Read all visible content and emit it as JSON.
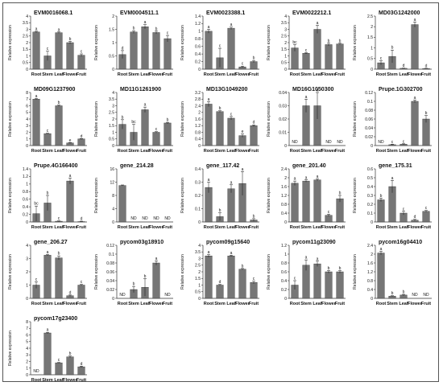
{
  "x_categories": [
    "Root",
    "Stem",
    "Leaf",
    "Flower",
    "Fruit"
  ],
  "ylabel": "Relative expression",
  "colors": {
    "bar": "#767676",
    "bar_edge": "#333333",
    "axis": "#333333",
    "text": "#111111"
  },
  "chart_data": [
    {
      "type": "bar",
      "title": "EVM0016068.1",
      "ylim": [
        0,
        4
      ],
      "yticks": [
        "0",
        "0.5",
        "1",
        "1.5",
        "2",
        "2.5",
        "3",
        "3.5",
        "4"
      ],
      "values": [
        2.8,
        1.0,
        2.75,
        2.0,
        1.05
      ],
      "errors": [
        0.05,
        0.35,
        0.05,
        0.1,
        0.1
      ],
      "letters": [
        "a",
        "c",
        "a",
        "b",
        "c"
      ]
    },
    {
      "type": "bar",
      "title": "EVM0004511.1",
      "ylim": [
        0,
        2
      ],
      "yticks": [
        "0",
        "0.5",
        "1",
        "1.5",
        "2"
      ],
      "values": [
        0.55,
        1.4,
        1.6,
        1.38,
        1.15
      ],
      "errors": [
        0.15,
        0.05,
        0.08,
        0.05,
        0.12
      ],
      "letters": [
        "d",
        "b",
        "a",
        "b",
        "c"
      ]
    },
    {
      "type": "bar",
      "title": "EVM0023388.1",
      "ylim": [
        0,
        1.4
      ],
      "yticks": [
        "0",
        "0.2",
        "0.4",
        "0.6",
        "0.8",
        "1",
        "1.2",
        "1.4"
      ],
      "values": [
        1.0,
        0.3,
        1.08,
        0.06,
        0.2
      ],
      "errors": [
        0.05,
        0.25,
        0.03,
        0.02,
        0.03
      ],
      "letters": [
        "a",
        "c",
        "a",
        "c",
        "b"
      ]
    },
    {
      "type": "bar",
      "title": "EVM0022212.1",
      "ylim": [
        0,
        4
      ],
      "yticks": [
        "0",
        "0.5",
        "1",
        "1.5",
        "2",
        "2.5",
        "3",
        "3.5",
        "4"
      ],
      "values": [
        1.6,
        1.2,
        3.0,
        1.85,
        1.9
      ],
      "errors": [
        0.25,
        0.05,
        0.3,
        0.1,
        0.05
      ],
      "letters": [
        "bc",
        "c",
        "a",
        "b",
        "b"
      ]
    },
    {
      "type": "bar",
      "title": "MD03G1242000",
      "ylim": [
        0,
        2.5
      ],
      "yticks": [
        "0",
        "0.5",
        "1",
        "1.5",
        "2",
        "2.5"
      ],
      "values": [
        0.3,
        0.6,
        0.04,
        2.1,
        0.03
      ],
      "errors": [
        0.1,
        0.3,
        0.01,
        0.12,
        0.01
      ],
      "letters": [
        "c",
        "b",
        "d",
        "a",
        "d"
      ]
    },
    {
      "type": "bar",
      "title": "MD09G1237900",
      "ylim": [
        0,
        8
      ],
      "yticks": [
        "0",
        "1",
        "2",
        "3",
        "4",
        "5",
        "6",
        "7",
        "8"
      ],
      "values": [
        7.0,
        1.8,
        6.0,
        0.4,
        1.0
      ],
      "errors": [
        0.1,
        0.05,
        0.1,
        0.05,
        0.05
      ],
      "letters": [
        "a",
        "c",
        "b",
        "e",
        "d"
      ]
    },
    {
      "type": "bar",
      "title": "MD11G1261900",
      "ylim": [
        0,
        4
      ],
      "yticks": [
        "0",
        "0.5",
        "1",
        "1.5",
        "2",
        "2.5",
        "3",
        "3.5",
        "4"
      ],
      "values": [
        1.6,
        1.0,
        2.7,
        1.0,
        1.7
      ],
      "errors": [
        0.35,
        0.6,
        0.2,
        0.05,
        0.05
      ],
      "letters": [
        "b",
        "bc",
        "a",
        "c",
        "b"
      ]
    },
    {
      "type": "bar",
      "title": "MD13G1049200",
      "ylim": [
        0,
        3.2
      ],
      "yticks": [
        "0",
        "0.4",
        "0.8",
        "1.2",
        "1.6",
        "2",
        "2.4",
        "2.8",
        "3.2"
      ],
      "values": [
        2.5,
        2.05,
        1.65,
        0.6,
        1.2
      ],
      "errors": [
        0.15,
        0.05,
        0.1,
        0.1,
        0.05
      ],
      "letters": [
        "a",
        "b",
        "c",
        "e",
        "d"
      ]
    },
    {
      "type": "bar",
      "title": "MD16G1050300",
      "ylim": [
        0,
        0.04
      ],
      "yticks": [
        "0",
        "0.01",
        "0.02",
        "0.03",
        "0.04"
      ],
      "values": [
        null,
        0.03,
        0.03,
        null,
        null
      ],
      "errors": [
        0,
        0.005,
        0.01,
        0,
        0
      ],
      "letters": [
        "",
        "a",
        "a",
        "",
        ""
      ],
      "nd": [
        true,
        false,
        false,
        true,
        true
      ]
    },
    {
      "type": "bar",
      "title": "Prupe.1G302700",
      "ylim": [
        0,
        0.12
      ],
      "yticks": [
        "0",
        "0.02",
        "0.04",
        "0.06",
        "0.08",
        "0.1",
        "0.12"
      ],
      "values": [
        null,
        0.002,
        0.003,
        0.1,
        0.06
      ],
      "errors": [
        0,
        0.001,
        0.001,
        0.003,
        0.008
      ],
      "letters": [
        "",
        "c",
        "c",
        "a",
        "b"
      ],
      "nd": [
        true,
        false,
        false,
        false,
        false
      ]
    },
    {
      "type": "bar",
      "title": "Prupe.4G166400",
      "ylim": [
        0,
        1.4
      ],
      "yticks": [
        "0",
        "0.2",
        "0.4",
        "0.6",
        "0.8",
        "1",
        "1.2",
        "1.4"
      ],
      "values": [
        0.22,
        0.5,
        0.02,
        1.08,
        0.01
      ],
      "errors": [
        0.2,
        0.2,
        0.01,
        0.08,
        0.01
      ],
      "letters": [
        "bc",
        "b",
        "c",
        "a",
        "d"
      ]
    },
    {
      "type": "bar",
      "title": "gene_214.28",
      "ylim": [
        0,
        16
      ],
      "yticks": [
        "0",
        "4",
        "8",
        "12",
        "16"
      ],
      "values": [
        11.0,
        null,
        null,
        null,
        null
      ],
      "errors": [
        0.15,
        0,
        0,
        0,
        0
      ],
      "letters": [
        "",
        "",
        "",
        "",
        ""
      ],
      "nd": [
        false,
        true,
        true,
        true,
        true
      ]
    },
    {
      "type": "bar",
      "title": "gene_117.42",
      "ylim": [
        0,
        0.4
      ],
      "yticks": [
        "0",
        "0.1",
        "0.2",
        "0.3",
        "0.4"
      ],
      "values": [
        0.26,
        0.04,
        0.25,
        0.29,
        0.015
      ],
      "errors": [
        0.04,
        0.03,
        0.03,
        0.09,
        0.01
      ],
      "letters": [
        "a",
        "b",
        "a",
        "a",
        "b"
      ]
    },
    {
      "type": "bar",
      "title": "gene_201.40",
      "ylim": [
        0,
        2.4
      ],
      "yticks": [
        "0",
        "0.4",
        "0.8",
        "1.2",
        "1.6",
        "2",
        "2.4"
      ],
      "values": [
        1.75,
        1.85,
        1.9,
        0.3,
        1.05
      ],
      "errors": [
        0.1,
        0.05,
        0.05,
        0.05,
        0.15
      ],
      "letters": [
        "a",
        "a",
        "a",
        "c",
        "b"
      ]
    },
    {
      "type": "bar",
      "title": "gene_175.31",
      "ylim": [
        0,
        0.6
      ],
      "yticks": [
        "0",
        "0.1",
        "0.2",
        "0.3",
        "0.4",
        "0.5",
        "0.6"
      ],
      "values": [
        0.25,
        0.4,
        0.1,
        0.02,
        0.12
      ],
      "errors": [
        0.02,
        0.07,
        0.02,
        0.01,
        0.01
      ],
      "letters": [
        "b",
        "a",
        "c",
        "d",
        "c"
      ]
    },
    {
      "type": "bar",
      "title": "gene_206.27",
      "ylim": [
        0,
        4
      ],
      "yticks": [
        "0",
        "1",
        "2",
        "3",
        "4"
      ],
      "values": [
        1.0,
        3.25,
        3.05,
        0.2,
        1.0
      ],
      "errors": [
        0.25,
        0.05,
        0.15,
        0.05,
        0.05
      ],
      "letters": [
        "c",
        "a",
        "b",
        "d",
        "c"
      ]
    },
    {
      "type": "bar",
      "title": "pycom03g18910",
      "ylim": [
        0,
        0.12
      ],
      "yticks": [
        "0",
        "0.02",
        "0.04",
        "0.06",
        "0.08",
        "0.1",
        "0.12"
      ],
      "values": [
        null,
        0.02,
        0.025,
        0.08,
        null
      ],
      "errors": [
        0,
        0.007,
        0.02,
        0.005,
        0
      ],
      "letters": [
        "",
        "b",
        "b",
        "a",
        ""
      ],
      "nd": [
        true,
        false,
        false,
        false,
        true
      ]
    },
    {
      "type": "bar",
      "title": "pycom09g15640",
      "ylim": [
        0,
        4
      ],
      "yticks": [
        "0",
        "0.5",
        "1",
        "1.5",
        "2",
        "2.5",
        "3",
        "3.5",
        "4"
      ],
      "values": [
        3.2,
        1.0,
        3.2,
        2.2,
        1.2
      ],
      "errors": [
        0.1,
        0.05,
        0.05,
        0.05,
        0.1
      ],
      "letters": [
        "a",
        "d",
        "a",
        "b",
        "c"
      ]
    },
    {
      "type": "bar",
      "title": "pycom11g23090",
      "ylim": [
        0,
        1.2
      ],
      "yticks": [
        "0",
        "0.2",
        "0.4",
        "0.6",
        "0.8",
        "1",
        "1.2"
      ],
      "values": [
        0.3,
        0.75,
        0.78,
        0.6,
        0.6
      ],
      "errors": [
        0.1,
        0.12,
        0.06,
        0.03,
        0.03
      ],
      "letters": [
        "c",
        "a",
        "a",
        "b",
        "b"
      ]
    },
    {
      "type": "bar",
      "title": "pycom16g04410",
      "ylim": [
        0,
        2.4
      ],
      "yticks": [
        "0",
        "0.4",
        "0.8",
        "1.2",
        "1.6",
        "2",
        "2.4"
      ],
      "values": [
        2.05,
        0.1,
        0.15,
        null,
        null
      ],
      "errors": [
        0.08,
        0.02,
        0.03,
        0,
        0
      ],
      "letters": [
        "a",
        "b",
        "b",
        "",
        ""
      ],
      "nd": [
        false,
        false,
        false,
        true,
        true
      ]
    },
    {
      "type": "bar",
      "title": "pycom17g23400",
      "ylim": [
        0,
        8
      ],
      "yticks": [
        "0",
        "1",
        "2",
        "3",
        "4",
        "5",
        "6",
        "7",
        "8"
      ],
      "values": [
        null,
        6.3,
        1.8,
        2.7,
        1.2
      ],
      "errors": [
        0,
        0.1,
        0.05,
        0.15,
        0.1
      ],
      "letters": [
        "",
        "a",
        "c",
        "b",
        "d"
      ],
      "nd": [
        true,
        false,
        false,
        false,
        false
      ]
    }
  ]
}
